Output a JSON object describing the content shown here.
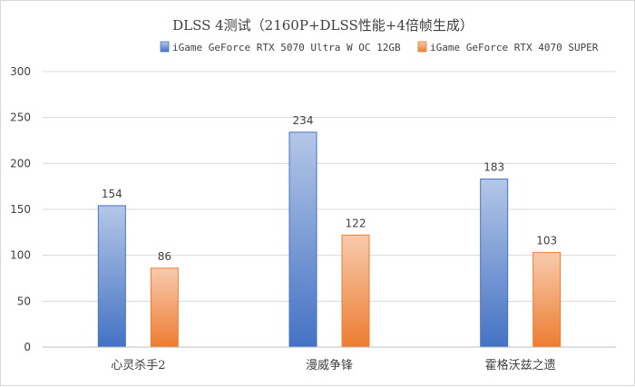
{
  "chart_data": {
    "type": "bar",
    "title": "DLSS 4测试（2160P+DLSS性能+4倍帧生成）",
    "categories": [
      "心灵杀手2",
      "漫威争锋",
      "霍格沃兹之遗"
    ],
    "series": [
      {
        "name": "iGame GeForce RTX 5070 Ultra W OC 12GB",
        "values": [
          154,
          234,
          183
        ],
        "color": "#4472c4"
      },
      {
        "name": "iGame GeForce RTX 4070 SUPER",
        "values": [
          86,
          122,
          103
        ],
        "color": "#ed7d31"
      }
    ],
    "ylim": [
      0,
      300
    ],
    "yticks": [
      0,
      50,
      100,
      150,
      200,
      250,
      300
    ],
    "grid": true,
    "legend_position": "top-right"
  }
}
